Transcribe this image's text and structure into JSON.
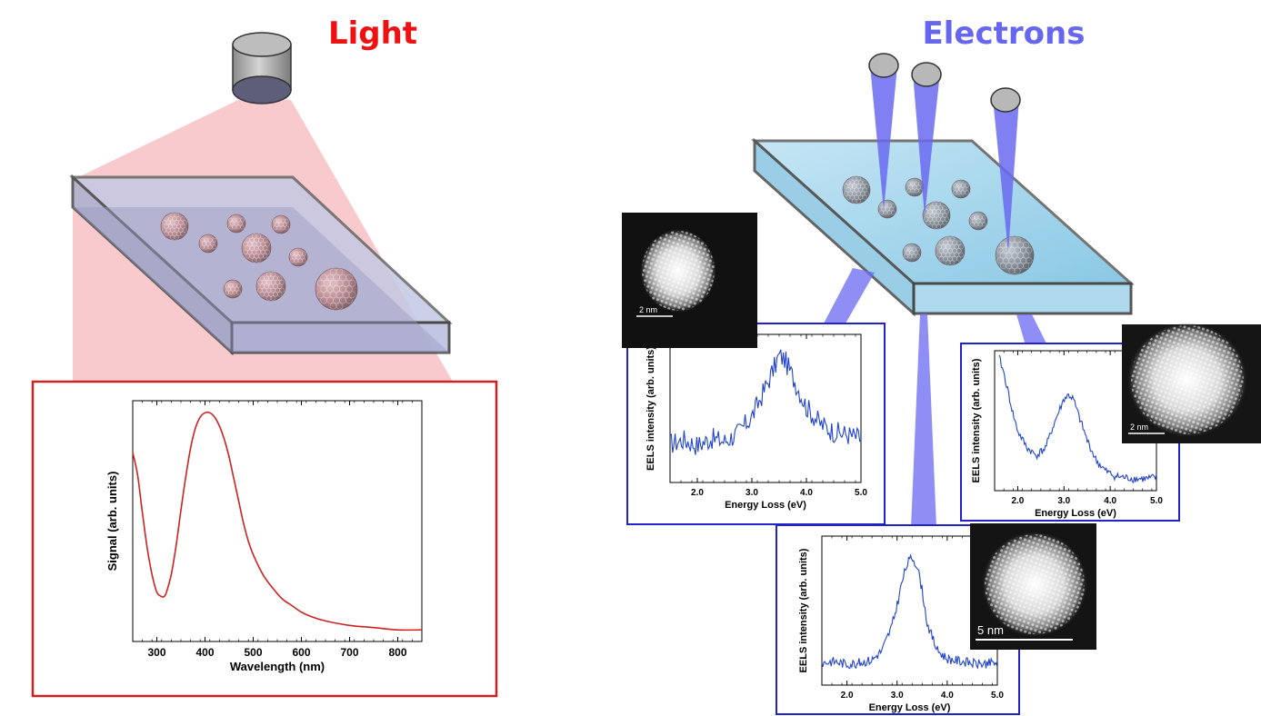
{
  "panels": {
    "light": {
      "title": "Light",
      "color": "#ee1111"
    },
    "electrons": {
      "title": "Electrons",
      "color": "#6666ee"
    }
  },
  "colors": {
    "light_cone": "#f6b8bc",
    "electron_beam": "#6a6af0",
    "light_curve": "#cc2222",
    "eels_curve": "#2244cc",
    "frame_red": "#cc2222",
    "frame_blue": "#2222cc"
  },
  "icons": [
    "light-source-icon",
    "electron-gun-icon",
    "nanoparticle-icon"
  ],
  "chart_data": [
    {
      "type": "line",
      "name": "optical-spectrum",
      "xlabel": "Wavelength (nm)",
      "ylabel": "Signal (arb. units)",
      "xlim": [
        250,
        850
      ],
      "xticks": [
        "300",
        "400",
        "500",
        "600",
        "700",
        "800"
      ],
      "x": [
        250,
        260,
        270,
        280,
        290,
        300,
        310,
        315,
        320,
        330,
        340,
        350,
        360,
        370,
        380,
        390,
        400,
        410,
        420,
        430,
        440,
        450,
        460,
        470,
        480,
        490,
        500,
        520,
        540,
        560,
        580,
        600,
        620,
        650,
        700,
        750,
        800,
        850
      ],
      "y": [
        0.82,
        0.72,
        0.55,
        0.39,
        0.27,
        0.19,
        0.17,
        0.17,
        0.19,
        0.27,
        0.4,
        0.56,
        0.71,
        0.84,
        0.93,
        0.98,
        1.0,
        1.0,
        0.98,
        0.94,
        0.88,
        0.8,
        0.7,
        0.6,
        0.5,
        0.42,
        0.36,
        0.27,
        0.21,
        0.16,
        0.13,
        0.1,
        0.08,
        0.06,
        0.04,
        0.03,
        0.02,
        0.02
      ]
    },
    {
      "type": "line",
      "name": "eels-left",
      "xlabel": "Energy Loss (eV)",
      "ylabel": "EELS intensity (arb. units)",
      "xlim": [
        1.5,
        5.0
      ],
      "xticks": [
        "2.0",
        "3.0",
        "4.0",
        "5.0"
      ],
      "x": [
        1.5,
        1.75,
        2.0,
        2.25,
        2.5,
        2.75,
        3.0,
        3.2,
        3.4,
        3.5,
        3.6,
        3.8,
        4.0,
        4.25,
        4.5,
        4.75,
        5.0
      ],
      "y": [
        0.25,
        0.28,
        0.24,
        0.29,
        0.27,
        0.33,
        0.45,
        0.62,
        0.8,
        0.9,
        0.87,
        0.7,
        0.52,
        0.4,
        0.34,
        0.32,
        0.29
      ]
    },
    {
      "type": "line",
      "name": "eels-right",
      "xlabel": "Energy Loss (eV)",
      "ylabel": "EELS intensity (arb. units)",
      "xlim": [
        1.5,
        5.0
      ],
      "xticks": [
        "2.0",
        "3.0",
        "4.0",
        "5.0"
      ],
      "x": [
        1.6,
        1.7,
        1.8,
        1.9,
        2.0,
        2.2,
        2.4,
        2.6,
        2.8,
        3.0,
        3.1,
        3.2,
        3.3,
        3.5,
        3.7,
        3.9,
        4.1,
        4.3,
        4.5,
        4.8,
        5.0
      ],
      "y": [
        1.0,
        0.88,
        0.72,
        0.56,
        0.43,
        0.3,
        0.24,
        0.3,
        0.5,
        0.68,
        0.71,
        0.68,
        0.57,
        0.36,
        0.2,
        0.12,
        0.08,
        0.07,
        0.06,
        0.06,
        0.07
      ]
    },
    {
      "type": "line",
      "name": "eels-bottom",
      "xlabel": "Energy Loss (eV)",
      "ylabel": "EELS intensity (arb. units)",
      "xlim": [
        1.5,
        5.0
      ],
      "xticks": [
        "2.0",
        "3.0",
        "4.0",
        "5.0"
      ],
      "x": [
        1.5,
        1.75,
        2.0,
        2.25,
        2.5,
        2.7,
        2.9,
        3.0,
        3.1,
        3.2,
        3.3,
        3.4,
        3.5,
        3.6,
        3.8,
        4.0,
        4.3,
        4.6,
        5.0
      ],
      "y": [
        0.13,
        0.14,
        0.12,
        0.13,
        0.15,
        0.22,
        0.4,
        0.55,
        0.72,
        0.85,
        0.9,
        0.84,
        0.66,
        0.42,
        0.22,
        0.16,
        0.14,
        0.12,
        0.13
      ]
    }
  ],
  "micrographs": [
    {
      "name": "micrograph-left",
      "scale_label": "2 nm"
    },
    {
      "name": "micrograph-right",
      "scale_label": "2 nm"
    },
    {
      "name": "micrograph-bottom",
      "scale_label": "5 nm"
    }
  ]
}
